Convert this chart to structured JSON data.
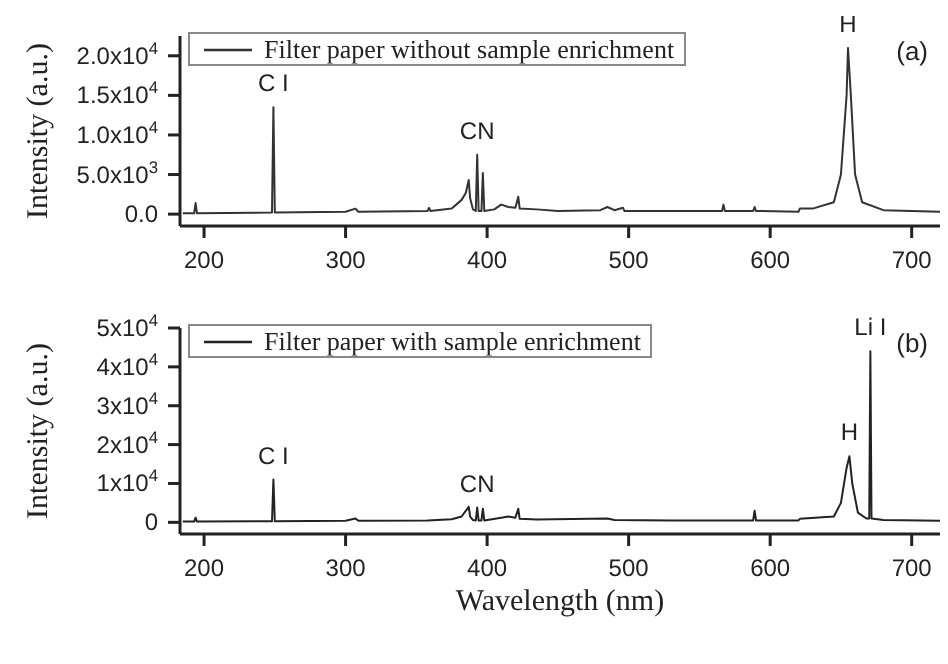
{
  "chart_data": [
    {
      "type": "line",
      "ylabel": "Intensity (a.u.)",
      "legend": "top left",
      "marker": "none",
      "line_style": "solid",
      "xlim": [
        183,
        720
      ],
      "ylim": [
        -1500,
        22500
      ],
      "xticks": [
        200,
        300,
        400,
        500,
        600,
        700
      ],
      "yticks": [
        {
          "value": 0,
          "label": "0.0"
        },
        {
          "value": 5000,
          "label": "5.0x10$^{3}$"
        },
        {
          "value": 10000,
          "label": "1.0x10$^{4}$"
        },
        {
          "value": 15000,
          "label": "1.5x10$^{4}$"
        },
        {
          "value": 20000,
          "label": "2.0x10$^{4}$"
        }
      ],
      "annotations": [
        {
          "text": "C I",
          "x": 249,
          "y": 13500
        },
        {
          "text": "CN",
          "x": 393,
          "y": 7500
        },
        {
          "text": "H",
          "x": 655,
          "y": 21000
        },
        "(a)"
      ],
      "series": [
        {
          "name": "Filter paper without sample enrichment",
          "color": "#333333",
          "x": [
            185,
            193,
            194,
            195,
            248,
            249,
            250,
            300,
            307,
            309,
            358,
            359,
            360,
            375,
            382,
            385,
            387,
            388,
            390,
            392,
            393,
            394,
            396,
            397,
            398,
            405,
            410,
            415,
            420,
            422,
            423,
            435,
            450,
            480,
            485,
            490,
            496,
            497,
            530,
            566,
            567,
            568,
            588,
            589,
            590,
            620,
            621,
            630,
            645,
            650,
            654,
            655,
            657,
            660,
            665,
            680,
            720
          ],
          "values": [
            100,
            100,
            1400,
            100,
            200,
            13500,
            200,
            300,
            700,
            300,
            400,
            800,
            400,
            700,
            1800,
            2700,
            4300,
            2000,
            600,
            400,
            7500,
            400,
            400,
            5200,
            400,
            600,
            1200,
            900,
            800,
            2200,
            700,
            600,
            400,
            500,
            900,
            500,
            800,
            400,
            400,
            400,
            1200,
            400,
            400,
            900,
            400,
            300,
            700,
            700,
            1500,
            5000,
            15000,
            21000,
            15000,
            5000,
            1500,
            500,
            300
          ]
        }
      ]
    },
    {
      "type": "line",
      "xlabel": "Wavelength (nm)",
      "ylabel": "Intensity (a.u.)",
      "legend": "top left",
      "marker": "none",
      "line_style": "solid",
      "xlim": [
        183,
        720
      ],
      "ylim": [
        -3000,
        50000
      ],
      "xticks": [
        200,
        300,
        400,
        500,
        600,
        700
      ],
      "yticks": [
        0,
        {
          "value": 10000,
          "label": "1x10$^{4}$"
        },
        {
          "value": 20000,
          "label": "2x10$^{4}$"
        },
        {
          "value": 30000,
          "label": "3x10$^{4}$"
        },
        {
          "value": 40000,
          "label": "4x10$^{4}$"
        },
        {
          "value": 50000,
          "label": "5x10$^{4}$"
        }
      ],
      "annotations": [
        {
          "text": "C I",
          "x": 249,
          "y": 11000
        },
        {
          "text": "CN",
          "x": 393,
          "y": 3800
        },
        {
          "text": "H",
          "x": 656,
          "y": 17000
        },
        {
          "text": "Li I",
          "x": 670.8,
          "y": 44000
        },
        "(b)"
      ],
      "series": [
        {
          "name": "Filter paper with sample enrichment",
          "color": "#222222",
          "x": [
            185,
            193,
            194,
            195,
            248,
            249,
            250,
            300,
            307,
            309,
            358,
            375,
            382,
            387,
            388,
            390,
            392,
            393,
            394,
            396,
            397,
            398,
            410,
            415,
            420,
            422,
            423,
            435,
            485,
            490,
            530,
            588,
            589,
            590,
            620,
            621,
            645,
            650,
            654,
            656,
            658,
            662,
            668,
            670,
            670.8,
            671.6,
            680,
            720
          ],
          "values": [
            200,
            200,
            1200,
            200,
            300,
            11000,
            300,
            400,
            1000,
            400,
            500,
            800,
            1500,
            4000,
            1500,
            600,
            500,
            3800,
            500,
            500,
            3500,
            500,
            1200,
            1500,
            1200,
            3500,
            900,
            700,
            1000,
            600,
            500,
            500,
            3000,
            500,
            500,
            900,
            1500,
            5000,
            14000,
            17000,
            10000,
            2500,
            1000,
            1000,
            44000,
            1000,
            600,
            400
          ]
        }
      ]
    }
  ]
}
